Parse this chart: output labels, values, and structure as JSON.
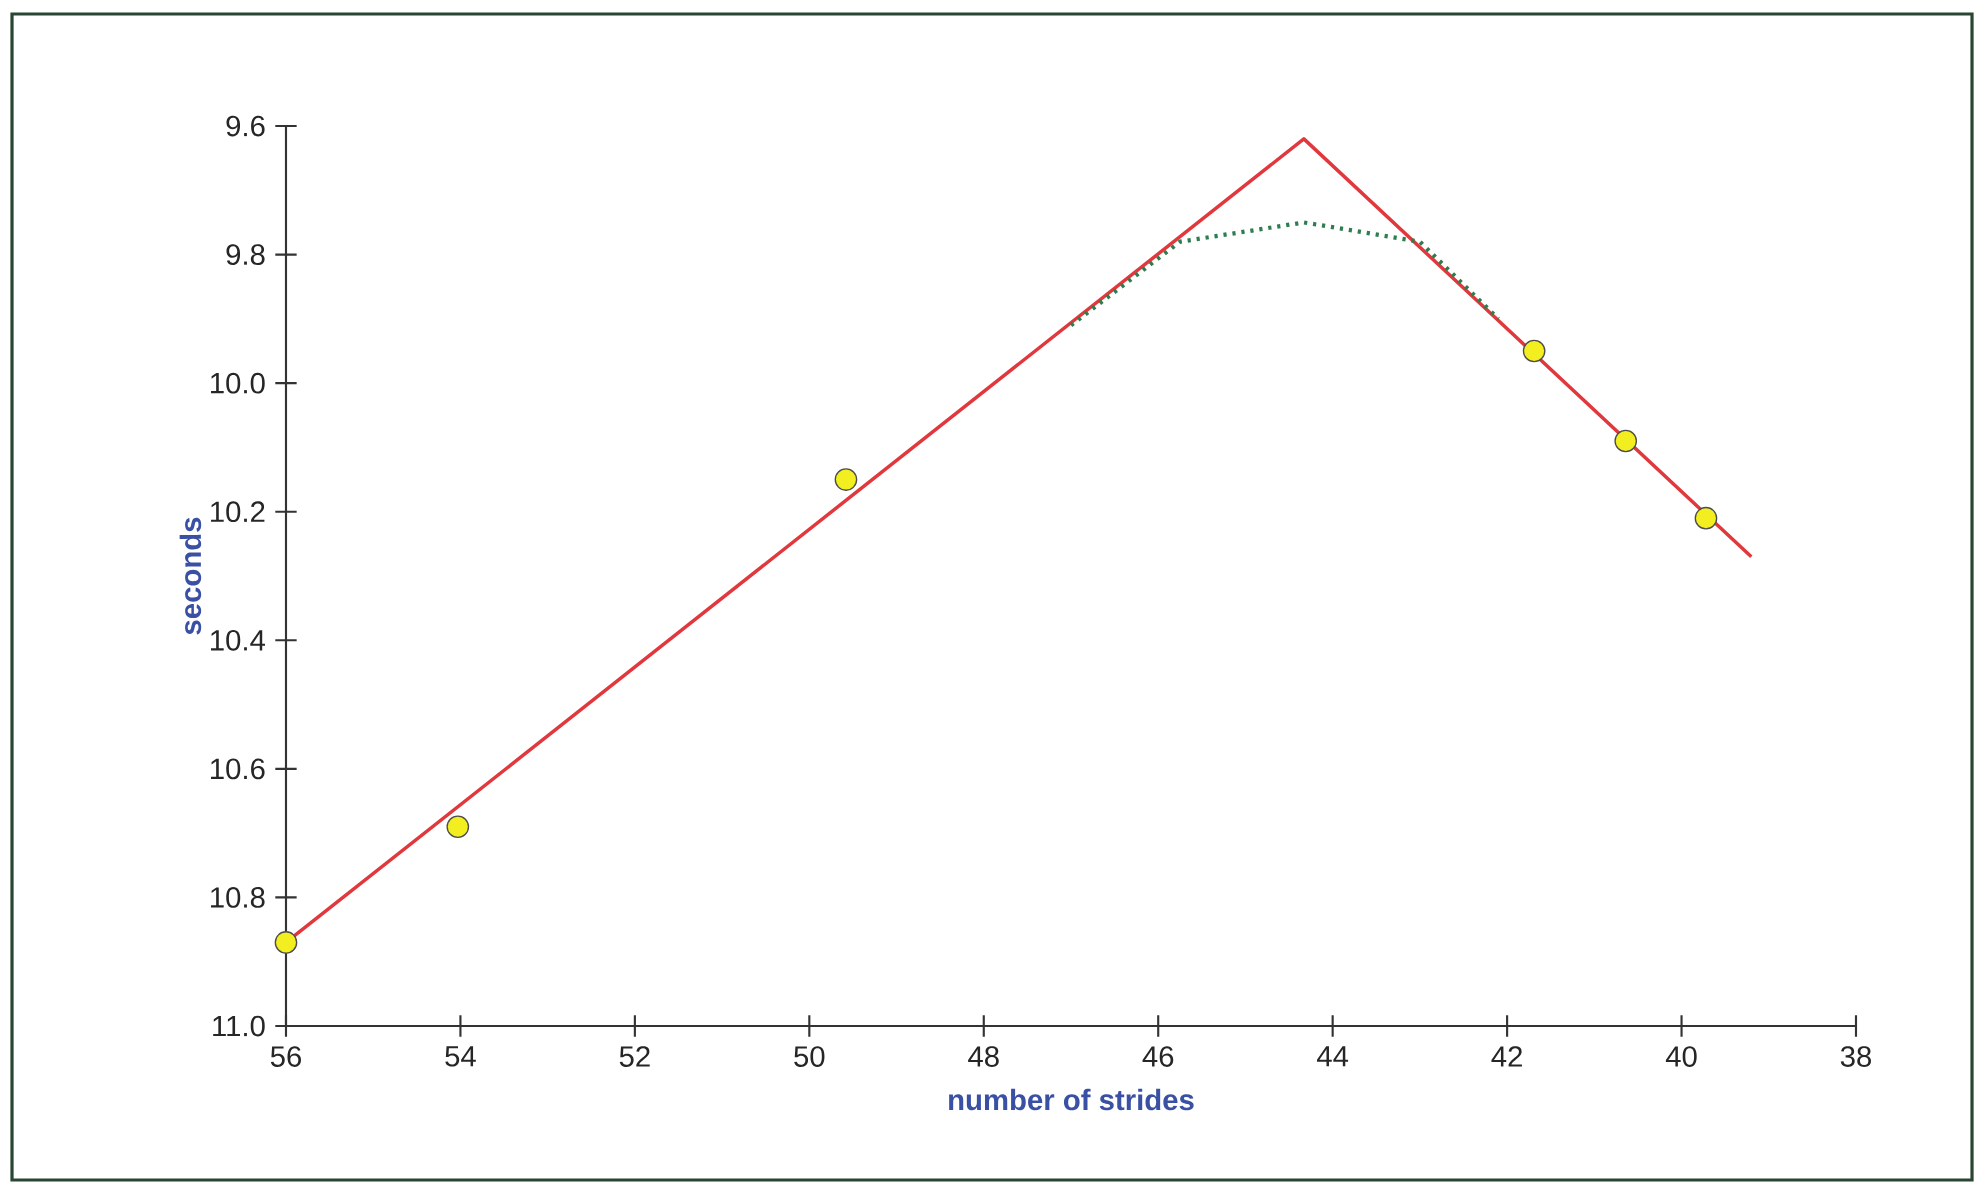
{
  "chart_data": {
    "type": "scatter",
    "xlabel": "number of strides",
    "ylabel": "seconds",
    "xlim": [
      56,
      38
    ],
    "ylim": [
      11.0,
      9.6
    ],
    "xticks": [
      56,
      54,
      52,
      50,
      48,
      46,
      44,
      42,
      40,
      38
    ],
    "yticks": [
      {
        "value": 9.6,
        "label": "9.6"
      },
      {
        "value": 9.8,
        "label": "9.8"
      },
      {
        "value": 10.0,
        "label": "10.0"
      },
      {
        "value": 10.2,
        "label": "10.2"
      },
      {
        "value": 10.4,
        "label": "10.4"
      },
      {
        "value": 10.6,
        "label": "10.6"
      },
      {
        "value": 10.8,
        "label": "10.8"
      },
      {
        "value": 11.0,
        "label": "11.0"
      }
    ],
    "series": [
      {
        "type": "line",
        "color": "#e0383c",
        "line_style": "solid",
        "marker": "none",
        "x": [
          56,
          44.33,
          39.2
        ],
        "values": [
          10.87,
          9.62,
          10.27
        ]
      },
      {
        "type": "line",
        "color": "#2e7d4f",
        "line_style": "dotted",
        "marker": "none",
        "x": [
          47.0,
          45.75,
          44.33,
          43.0,
          42.1
        ],
        "values": [
          9.91,
          9.78,
          9.75,
          9.78,
          9.9
        ]
      },
      {
        "color": "#f2ee1f",
        "marker": "circle",
        "x": [
          56,
          54.03,
          49.58,
          41.69,
          40.64,
          39.72
        ],
        "values": [
          10.87,
          10.69,
          10.15,
          9.95,
          10.09,
          10.21
        ]
      }
    ]
  }
}
